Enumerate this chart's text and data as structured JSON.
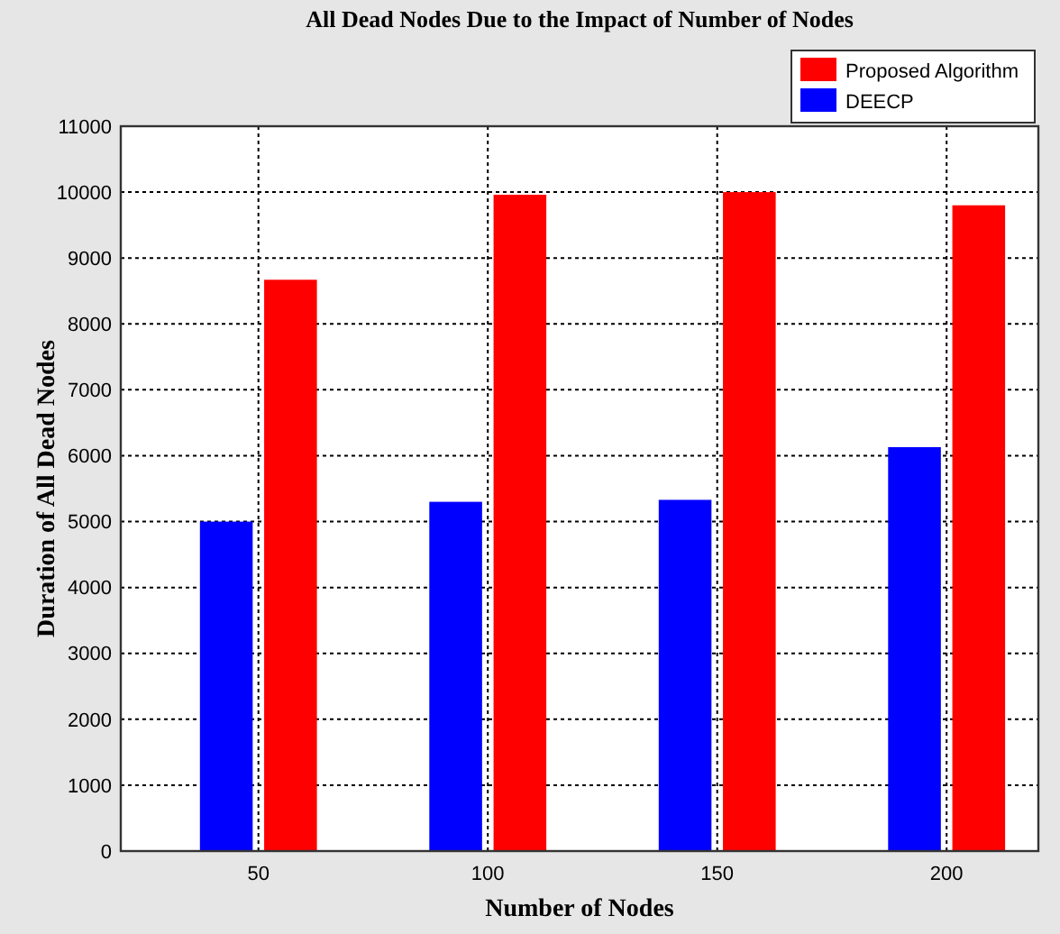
{
  "chart_data": {
    "type": "bar",
    "title": "All Dead Nodes Due to the Impact of Number of Nodes",
    "xlabel": "Number of Nodes",
    "ylabel": "Duration of All Dead Nodes",
    "x": [
      50,
      100,
      150,
      200
    ],
    "series": [
      {
        "name": "DEECP",
        "color": "#0000ff",
        "values": [
          5000,
          5300,
          5330,
          6130
        ]
      },
      {
        "name": "Proposed Algorithm",
        "color": "#ff0000",
        "values": [
          8670,
          9960,
          10000,
          9800
        ]
      }
    ],
    "xlim": [
      20,
      220
    ],
    "xticks": [
      50,
      100,
      150,
      200
    ],
    "ylim": [
      0,
      11000
    ],
    "yticks": [
      0,
      1000,
      2000,
      3000,
      4000,
      5000,
      6000,
      7000,
      8000,
      9000,
      10000,
      11000
    ],
    "grid": true,
    "legend": "top right"
  }
}
